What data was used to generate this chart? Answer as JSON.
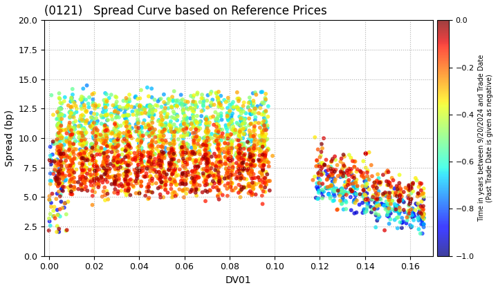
{
  "title": "(0121)   Spread Curve based on Reference Prices",
  "xlabel": "DV01",
  "ylabel": "Spread (bp)",
  "xlim": [
    -0.002,
    0.17
  ],
  "ylim": [
    0.0,
    20.0
  ],
  "xticks": [
    0.0,
    0.02,
    0.04,
    0.06,
    0.08,
    0.1,
    0.12,
    0.14,
    0.16
  ],
  "yticks": [
    0.0,
    2.5,
    5.0,
    7.5,
    10.0,
    12.5,
    15.0,
    17.5,
    20.0
  ],
  "colorbar_label": "Time in years between 9/20/2024 and Trade Date\n(Past Trade Date is given as negative)",
  "colorbar_vmin": -1.0,
  "colorbar_vmax": 0.0,
  "colorbar_ticks": [
    0.0,
    -0.2,
    -0.4,
    -0.6,
    -0.8,
    -1.0
  ],
  "cmap": "jet",
  "point_size": 18,
  "alpha": 0.75,
  "background_color": "#ffffff",
  "grid_color": "#b0b0b0",
  "title_fontsize": 12,
  "axis_label_fontsize": 10,
  "cluster_centers_main": [
    0.005,
    0.01,
    0.015,
    0.02,
    0.025,
    0.03,
    0.035,
    0.04,
    0.045,
    0.05,
    0.055,
    0.06,
    0.065,
    0.07,
    0.075,
    0.08,
    0.085,
    0.09,
    0.095
  ],
  "cluster_centers_sec": [
    0.12,
    0.125,
    0.13,
    0.135,
    0.14,
    0.145,
    0.15,
    0.155,
    0.16,
    0.165
  ],
  "pts_per_cluster_main": 120,
  "pts_per_cluster_sec": 60
}
